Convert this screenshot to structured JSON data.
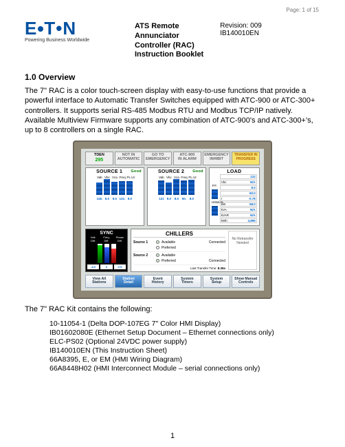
{
  "page_tag": "Page: 1 of 15",
  "logo_text_pre": "E",
  "logo_text_post": "T•N",
  "logo_tagline": "Powering Business Worldwide",
  "doc_title_l1": "ATS Remote",
  "doc_title_l2": "Annunciator",
  "doc_title_l3": "Controller (RAC)",
  "doc_title_l4": "Instruction Booklet",
  "revision_label": "Revision: 009",
  "doc_number": "IB140010EN",
  "section_heading": "1.0 Overview",
  "overview_para": "The 7\" RAC is a color touch-screen display with easy-to-use functions that provide a powerful interface to Automatic Transfer Switches equipped with ATC-900 or ATC-300+ controllers.  It supports serial RS-485 Modbus RTU and Modbus TCP/IP natively.  Available Multiview Firmware supports any combination of ATC-900's and ATC-300+'s, up to 8 controllers on a single RAC.",
  "hmi": {
    "top_buttons": {
      "tden": {
        "label": "TDEN",
        "value": "295"
      },
      "b2": "NOT IN\nAUTOMATIC",
      "b3": "GO TO\nEMERGENCY",
      "b4": "ATC-900\nIN ALARM",
      "b5": "EMERGENCY\nINHIBIT",
      "transfer": "TRANSFER IN\nPROGRESS"
    },
    "source1": {
      "title": "SOURCE 1",
      "status": "Good",
      "cols": [
        "Vab",
        "Vbc",
        "Vca",
        "Freq",
        "PL.Ut"
      ],
      "vals": [
        "118.",
        "8.0",
        "8.0",
        "122.",
        "8.0"
      ]
    },
    "source2": {
      "title": "SOURCE 2",
      "status": "Good",
      "cols": [
        "Vab",
        "Vbc",
        "Vca",
        "Freq",
        "PL.Ut"
      ],
      "vals": [
        "121",
        "8.0",
        "8.0",
        "60.",
        "8.0"
      ]
    },
    "load": {
      "title": "LOAD",
      "cols": [
        "P.F.",
        "Unbal.%"
      ],
      "vals": [
        "-0.78",
        "N/A"
      ],
      "side_rows": [
        [
          "",
          "122"
        ],
        [
          "Vbc",
          "N/A"
        ],
        [
          "",
          "8.0"
        ],
        [
          "",
          "60.0"
        ],
        [
          "I",
          "-0.78"
        ],
        [
          "kW",
          "58.0"
        ],
        [
          "kVA",
          "N/A"
        ],
        [
          "kVAR",
          "N/A"
        ],
        [
          "kWh",
          "4,895"
        ]
      ],
      "bottom_vals": [
        "-0.78",
        "N/A",
        "60.0"
      ]
    },
    "sync": {
      "title": "SYNC",
      "cols": [
        "Volt.\nDiff.",
        "Freq.\nDiff.",
        "Phase\nDiff."
      ],
      "bar_colors": [
        "sb-green",
        "sb-blue",
        "sb-red"
      ],
      "vals": [
        "-8.0",
        "0",
        "179"
      ]
    },
    "chillers": {
      "title": "CHILLERS",
      "rows": [
        {
          "name": "Source 1",
          "available": true,
          "preferred": false,
          "connected": true
        },
        {
          "name": "Source 2",
          "available": true,
          "preferred": true,
          "connected": false
        }
      ],
      "last_label": "Last Transfer Time:",
      "last_val": "8.39s",
      "noretran": "No Retransfer\nNeeded"
    },
    "nav": [
      "View All\nStations",
      "Station\nDetail",
      "Event\nHistory",
      "System\nTimers",
      "System\nSetup",
      "Show Manual\nControls"
    ],
    "nav_active_index": 1
  },
  "kit_intro": "The 7\" RAC Kit contains the following:",
  "kit_list": [
    "10-11054-1 (Delta DOP-107EG 7\" Color HMI Display)",
    "IB01602080E (Ethernet Setup Document – Ethernet connections only)",
    "ELC-PS02 (Optional 24VDC power supply)",
    "IB140010EN (This Instruction Sheet)",
    "66A8395, E, or EM (HMI Wiring Diagram)",
    "66A8448H02 (HMI Interconnect Module – serial connections only)"
  ],
  "footer_page": "1"
}
